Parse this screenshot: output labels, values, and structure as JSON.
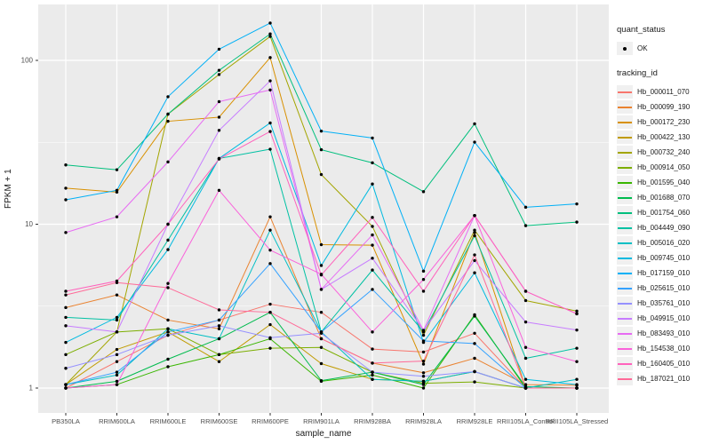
{
  "figure": {
    "background": "#ffffff",
    "panel_background": "#ebebeb",
    "grid_color": "#ffffff",
    "tick_text_color": "#4d4d4d",
    "title_text_color": "#1a1a1a",
    "point_color": "#000000"
  },
  "legend": {
    "quant_status_title": "quant_status",
    "quant_status_items": [
      {
        "label": "OK",
        "symbol": "point"
      }
    ],
    "tracking_id_title": "tracking_id"
  },
  "chart_data": {
    "type": "line",
    "title": "",
    "xlabel": "sample_name",
    "ylabel": "FPKM + 1",
    "y_scale": "log10",
    "y_ticks": [
      1,
      10,
      100
    ],
    "y_minor_ticks": [
      3.162,
      31.62
    ],
    "ylim": [
      0.93,
      210
    ],
    "grid": true,
    "legend_position": "right",
    "categories": [
      "PB350LA",
      "RRIM600LA",
      "RRIM600LE",
      "RRIM600SE",
      "RRIM600PE",
      "RRIM901LA",
      "RRIM928BA",
      "RRIM928LA",
      "RRIM928LE",
      "RRII105LA_Control",
      "RRII105LA_Stressed"
    ],
    "series": [
      {
        "name": "Hb_000011_070",
        "color": "#F8766D",
        "values": [
          1.0,
          1.45,
          2.1,
          2.6,
          3.25,
          2.9,
          1.73,
          1.66,
          2.16,
          1.0,
          1.0
        ]
      },
      {
        "name": "Hb_000099_190",
        "color": "#EA8331",
        "values": [
          3.1,
          3.7,
          2.6,
          2.3,
          11.1,
          2.0,
          1.42,
          1.24,
          1.52,
          1.05,
          1.04
        ]
      },
      {
        "name": "Hb_000172_230",
        "color": "#D89000",
        "values": [
          16.6,
          15.7,
          42.5,
          45.0,
          104.0,
          7.5,
          7.45,
          1.4,
          8.9,
          1.0,
          1.0
        ]
      },
      {
        "name": "Hb_000422_130",
        "color": "#C09B00",
        "values": [
          1.05,
          1.72,
          2.2,
          1.45,
          2.44,
          1.41,
          1.13,
          1.1,
          1.26,
          1.0,
          1.0
        ]
      },
      {
        "name": "Hb_000732_240",
        "color": "#A3A500",
        "values": [
          1.05,
          2.2,
          47.0,
          82.0,
          140.0,
          20.1,
          9.7,
          2.1,
          9.2,
          3.42,
          2.95
        ]
      },
      {
        "name": "Hb_000914_050",
        "color": "#7CAE00",
        "values": [
          1.6,
          2.2,
          2.3,
          1.6,
          1.75,
          1.77,
          1.25,
          1.07,
          1.09,
          1.0,
          1.0
        ]
      },
      {
        "name": "Hb_001595_040",
        "color": "#39B600",
        "values": [
          1.0,
          1.05,
          1.35,
          1.6,
          2.0,
          1.1,
          1.2,
          1.0,
          2.8,
          1.0,
          1.0
        ]
      },
      {
        "name": "Hb_001688_070",
        "color": "#00BB4E",
        "values": [
          1.0,
          1.1,
          1.5,
          2.0,
          2.9,
          1.11,
          1.25,
          1.05,
          2.75,
          1.02,
          1.0
        ]
      },
      {
        "name": "Hb_001754_060",
        "color": "#00BF7D",
        "values": [
          23.0,
          21.5,
          47.0,
          87.0,
          145.0,
          28.5,
          23.7,
          15.8,
          41.0,
          9.8,
          10.3
        ]
      },
      {
        "name": "Hb_004449_090",
        "color": "#00C1A3",
        "values": [
          2.7,
          2.6,
          8.0,
          25.2,
          28.7,
          2.2,
          5.25,
          2.2,
          8.5,
          1.52,
          1.75
        ]
      },
      {
        "name": "Hb_005016_020",
        "color": "#00BFC4",
        "values": [
          1.05,
          1.2,
          2.3,
          2.0,
          9.2,
          2.2,
          1.13,
          1.1,
          1.26,
          1.0,
          1.13
        ]
      },
      {
        "name": "Hb_009745_010",
        "color": "#00BAE0",
        "values": [
          1.9,
          2.7,
          7.0,
          25.2,
          41.5,
          5.6,
          17.6,
          1.9,
          5.05,
          1.13,
          1.05
        ]
      },
      {
        "name": "Hb_017159_010",
        "color": "#00B0F6",
        "values": [
          14.1,
          16.1,
          60.0,
          117.0,
          169.0,
          37.0,
          33.6,
          5.17,
          31.7,
          12.7,
          13.3
        ]
      },
      {
        "name": "Hb_025615_010",
        "color": "#35A2FF",
        "values": [
          1.05,
          1.25,
          2.2,
          2.6,
          5.75,
          2.2,
          4.0,
          1.94,
          1.87,
          1.0,
          1.0
        ]
      },
      {
        "name": "Hb_035761_010",
        "color": "#9590FF",
        "values": [
          1.32,
          1.6,
          2.1,
          2.4,
          2.03,
          2.16,
          1.25,
          1.18,
          1.26,
          1.0,
          1.0
        ]
      },
      {
        "name": "Hb_049915_010",
        "color": "#C77CFF",
        "values": [
          2.4,
          2.2,
          10.0,
          37.4,
          75.0,
          4.0,
          6.2,
          2.25,
          6.0,
          2.53,
          2.26
        ]
      },
      {
        "name": "Hb_083493_010",
        "color": "#E76BF3",
        "values": [
          8.9,
          11.1,
          24.0,
          56.0,
          66.0,
          4.0,
          8.6,
          2.25,
          11.3,
          3.9,
          2.84
        ]
      },
      {
        "name": "Hb_154538_010",
        "color": "#FA62DB",
        "values": [
          1.0,
          1.05,
          4.35,
          16.1,
          6.95,
          4.95,
          2.2,
          4.6,
          11.3,
          1.77,
          1.45
        ]
      },
      {
        "name": "Hb_160405_010",
        "color": "#FF62BC",
        "values": [
          3.9,
          4.5,
          10.0,
          25.0,
          36.8,
          4.9,
          11.0,
          3.9,
          11.3,
          3.9,
          2.84
        ]
      },
      {
        "name": "Hb_187021_010",
        "color": "#FF6A98",
        "values": [
          3.7,
          4.4,
          4.1,
          3.0,
          2.9,
          2.0,
          1.42,
          1.46,
          6.5,
          1.0,
          1.0
        ]
      }
    ]
  }
}
